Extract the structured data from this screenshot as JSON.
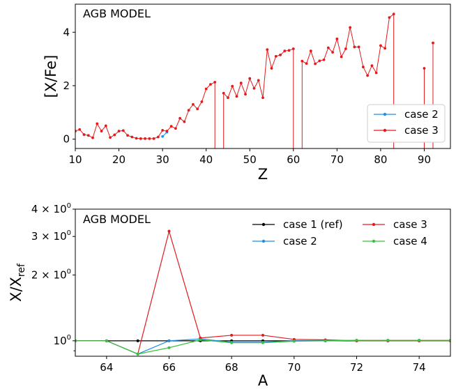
{
  "colors": {
    "case1": "#000000",
    "case2": "#1f8fe8",
    "case3": "#e31a1c",
    "case4": "#33c33e"
  },
  "chart_data": [
    {
      "type": "line",
      "panel_label": "AGB MODEL",
      "xlabel": "Z",
      "ylabel": "[X/Fe]",
      "xlim": [
        10,
        96
      ],
      "ylim": [
        -0.35,
        5.05
      ],
      "xticks": [
        10,
        20,
        30,
        40,
        50,
        60,
        70,
        80,
        90
      ],
      "yticks": [
        0,
        2,
        4
      ],
      "legend_position": "lower-right",
      "legend": [
        "case 2",
        "case 3"
      ],
      "series": [
        {
          "name": "case 2",
          "color_key": "case2",
          "points": [
            [
              30,
              0.1
            ],
            [
              31,
              0.26
            ]
          ]
        },
        {
          "name": "case 3",
          "color_key": "case3",
          "points": [
            [
              10,
              0.3
            ],
            [
              11,
              0.36
            ],
            [
              12,
              0.17
            ],
            [
              13,
              0.14
            ],
            [
              14,
              0.05
            ],
            [
              15,
              0.58
            ],
            [
              16,
              0.3
            ],
            [
              17,
              0.5
            ],
            [
              18,
              0.06
            ],
            [
              19,
              0.16
            ],
            [
              20,
              0.3
            ],
            [
              21,
              0.32
            ],
            [
              22,
              0.14
            ],
            [
              23,
              0.08
            ],
            [
              24,
              0.03
            ],
            [
              25,
              0.02
            ],
            [
              26,
              0.02
            ],
            [
              27,
              0.02
            ],
            [
              28,
              0.02
            ],
            [
              29,
              0.08
            ],
            [
              30,
              0.33
            ],
            [
              31,
              0.3
            ],
            [
              32,
              0.48
            ],
            [
              33,
              0.4
            ],
            [
              34,
              0.78
            ],
            [
              35,
              0.65
            ],
            [
              36,
              1.08
            ],
            [
              37,
              1.3
            ],
            [
              38,
              1.13
            ],
            [
              39,
              1.4
            ],
            [
              40,
              1.88
            ],
            [
              41,
              2.05
            ],
            [
              42,
              2.13
            ],
            [
              42,
              -0.35
            ],
            [
              43,
              null
            ],
            [
              44,
              -0.35
            ],
            [
              44,
              1.72
            ],
            [
              45,
              1.55
            ],
            [
              46,
              1.98
            ],
            [
              47,
              1.6
            ],
            [
              48,
              2.1
            ],
            [
              49,
              1.68
            ],
            [
              50,
              2.27
            ],
            [
              51,
              1.9
            ],
            [
              52,
              2.2
            ],
            [
              53,
              1.55
            ],
            [
              54,
              3.35
            ],
            [
              55,
              2.65
            ],
            [
              56,
              3.1
            ],
            [
              57,
              3.15
            ],
            [
              58,
              3.3
            ],
            [
              59,
              3.32
            ],
            [
              60,
              3.38
            ],
            [
              60,
              -0.35
            ],
            [
              61,
              null
            ],
            [
              62,
              -0.35
            ],
            [
              62,
              2.92
            ],
            [
              63,
              2.83
            ],
            [
              64,
              3.3
            ],
            [
              65,
              2.82
            ],
            [
              66,
              2.93
            ],
            [
              67,
              2.97
            ],
            [
              68,
              3.42
            ],
            [
              69,
              3.25
            ],
            [
              70,
              3.75
            ],
            [
              71,
              3.08
            ],
            [
              72,
              3.38
            ],
            [
              73,
              4.18
            ],
            [
              74,
              3.45
            ],
            [
              75,
              3.45
            ],
            [
              76,
              2.7
            ],
            [
              77,
              2.38
            ],
            [
              78,
              2.75
            ],
            [
              79,
              2.48
            ],
            [
              80,
              3.5
            ],
            [
              81,
              3.4
            ],
            [
              82,
              4.55
            ],
            [
              83,
              4.68
            ],
            [
              83,
              -0.35
            ],
            [
              84,
              null
            ],
            [
              90,
              -0.35
            ],
            [
              90,
              2.65
            ],
            [
              91,
              null
            ],
            [
              92,
              -0.35
            ],
            [
              92,
              3.6
            ]
          ]
        }
      ]
    },
    {
      "type": "line",
      "panel_label": "AGB MODEL",
      "xlabel": "A",
      "ylabel_main": "X/X",
      "ylabel_sub": "ref",
      "yscale": "log",
      "xlim": [
        63,
        75
      ],
      "ylim": [
        0.85,
        4.0
      ],
      "xticks": [
        64,
        66,
        68,
        70,
        72,
        74
      ],
      "yticks": [
        {
          "value": 1,
          "mant": "10",
          "exp": "0"
        },
        {
          "value": 2,
          "mant": "2 × 10",
          "exp": "0"
        },
        {
          "value": 3,
          "mant": "3 × 10",
          "exp": "0"
        },
        {
          "value": 4,
          "mant": "4 × 10",
          "exp": "0"
        }
      ],
      "minor_yticks": [
        0.9
      ],
      "legend_position": "upper-right",
      "legend": [
        "case 1 (ref)",
        "case 2",
        "case 3",
        "case 4"
      ],
      "series": [
        {
          "name": "case 1 (ref)",
          "color_key": "case1",
          "points": [
            [
              63,
              1.0
            ],
            [
              64,
              1.0
            ],
            [
              65,
              1.0
            ],
            [
              66,
              1.0
            ],
            [
              67,
              1.0
            ],
            [
              68,
              1.0
            ],
            [
              69,
              1.0
            ],
            [
              70,
              1.0
            ],
            [
              71,
              1.0
            ],
            [
              72,
              1.0
            ],
            [
              73,
              1.0
            ],
            [
              74,
              1.0
            ],
            [
              75,
              1.0
            ]
          ]
        },
        {
          "name": "case 2",
          "color_key": "case2",
          "points": [
            [
              63,
              1.0
            ],
            [
              64,
              1.0
            ],
            [
              65,
              0.87
            ],
            [
              66,
              1.0
            ],
            [
              67,
              1.02
            ],
            [
              68,
              0.985
            ],
            [
              69,
              0.985
            ],
            [
              70,
              1.0
            ],
            [
              71,
              1.0
            ],
            [
              72,
              1.005
            ],
            [
              73,
              1.005
            ],
            [
              74,
              1.005
            ],
            [
              75,
              1.005
            ]
          ]
        },
        {
          "name": "case 3",
          "color_key": "case3",
          "points": [
            [
              63,
              1.0
            ],
            [
              64,
              1.0
            ],
            [
              65,
              0.87
            ],
            [
              66,
              3.17
            ],
            [
              67,
              1.03
            ],
            [
              68,
              1.06
            ],
            [
              69,
              1.06
            ],
            [
              70,
              1.015
            ],
            [
              71,
              1.01
            ],
            [
              72,
              1.0
            ],
            [
              73,
              1.0
            ],
            [
              74,
              1.0
            ],
            [
              75,
              1.0
            ]
          ]
        },
        {
          "name": "case 4",
          "color_key": "case4",
          "points": [
            [
              63,
              1.0
            ],
            [
              64,
              1.0
            ],
            [
              65,
              0.87
            ],
            [
              66,
              0.93
            ],
            [
              67,
              1.01
            ],
            [
              68,
              0.98
            ],
            [
              69,
              0.98
            ],
            [
              70,
              0.995
            ],
            [
              71,
              1.0
            ],
            [
              72,
              1.005
            ],
            [
              73,
              1.005
            ],
            [
              74,
              1.005
            ],
            [
              75,
              1.005
            ]
          ]
        }
      ]
    }
  ]
}
